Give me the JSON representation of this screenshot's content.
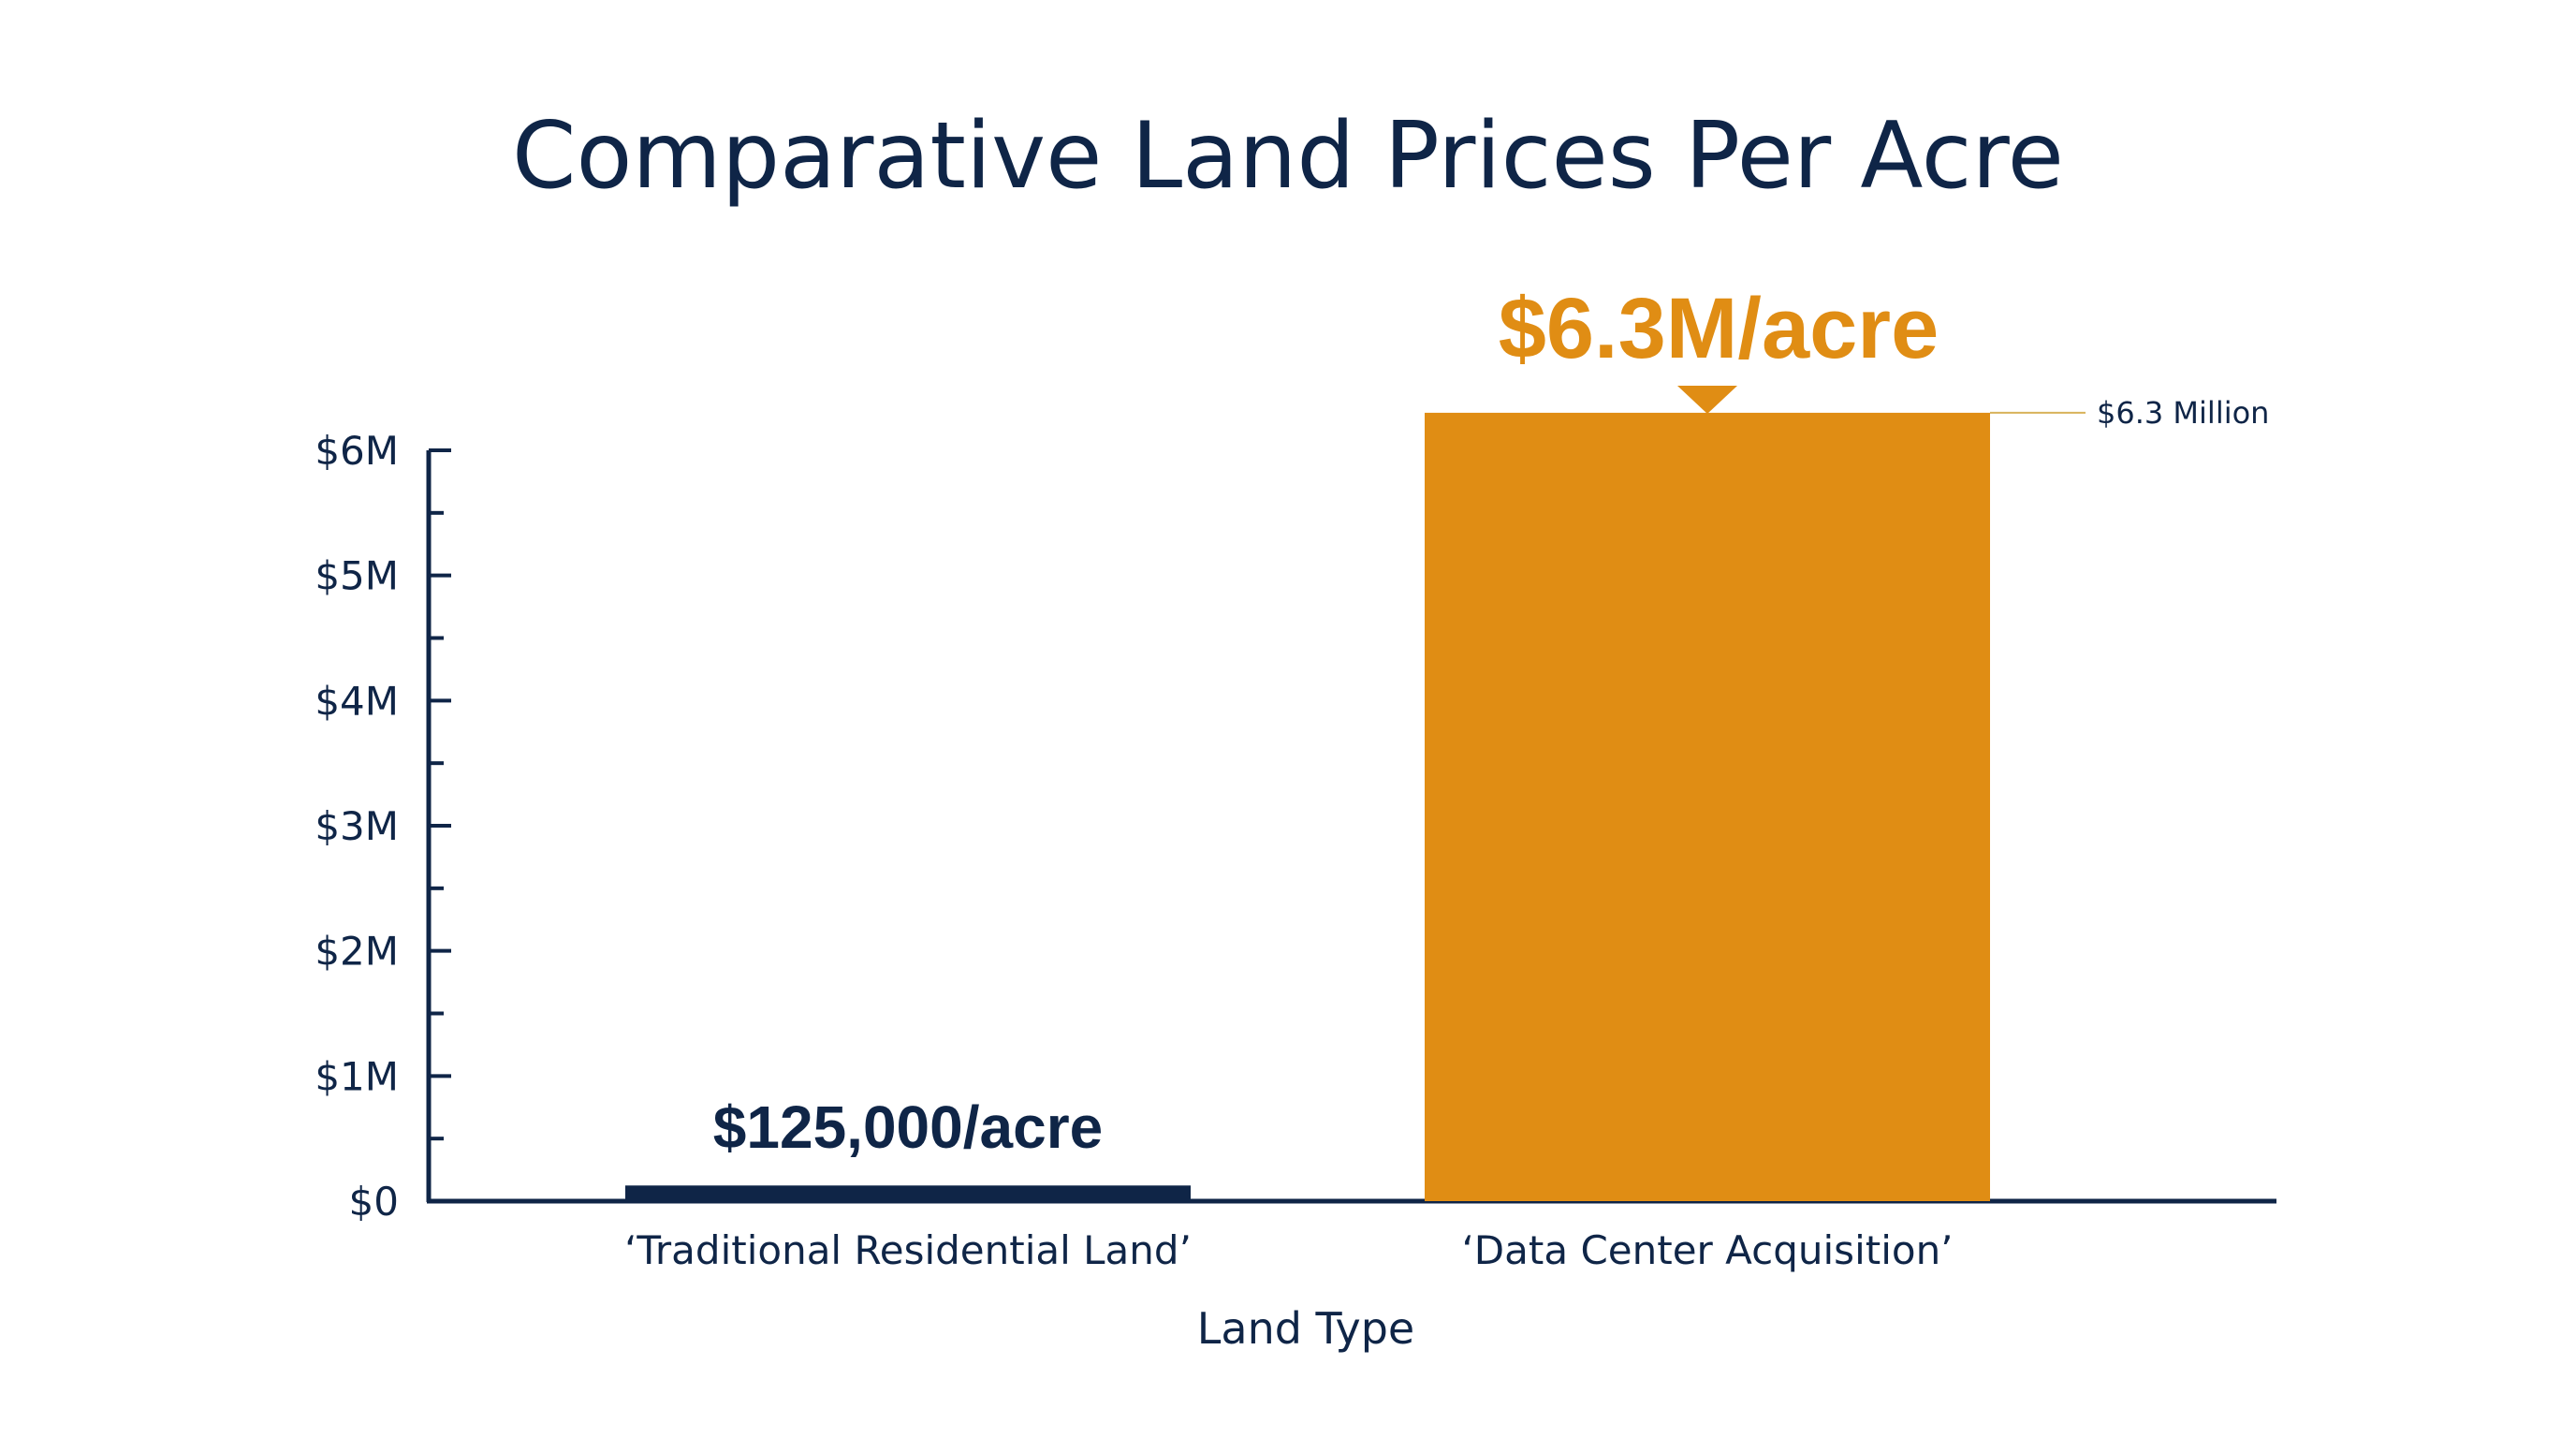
{
  "colors": {
    "navy": "#0f2547",
    "orange": "#e08d14",
    "leader": "#d8b35a",
    "background": "#ffffff"
  },
  "chart_data": {
    "type": "bar",
    "title": "Comparative Land Prices Per Acre",
    "xlabel": "Land Type",
    "ylabel": "",
    "ylim": [
      0,
      6000000
    ],
    "y_ticks": [
      {
        "value": 0,
        "label": "$0"
      },
      {
        "value": 1000000,
        "label": "$1M"
      },
      {
        "value": 2000000,
        "label": "$2M"
      },
      {
        "value": 3000000,
        "label": "$3M"
      },
      {
        "value": 4000000,
        "label": "$4M"
      },
      {
        "value": 5000000,
        "label": "$5M"
      },
      {
        "value": 6000000,
        "label": "$6M"
      }
    ],
    "categories": [
      "‘Traditional Residential Land’",
      "‘Data Center Acquisition’"
    ],
    "values": [
      125000,
      6300000
    ],
    "bar_colors": [
      "#0f2547",
      "#e08d14"
    ],
    "data_labels": [
      "$125,000/acre",
      "$6.3M/acre"
    ],
    "annotation": {
      "text": "$6.3 Million",
      "value": 6300000
    },
    "grid": false,
    "legend": "none"
  }
}
